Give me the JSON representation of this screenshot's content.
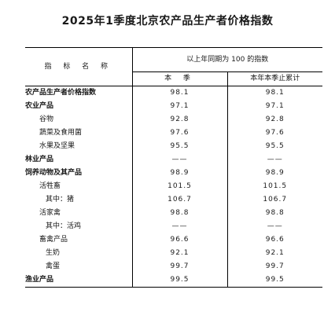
{
  "title": "2025年1季度北京农产品生产者价格指数",
  "header": {
    "name_col": "指 标 名 称",
    "group": "以上年同期为 100 的指数",
    "col_current": "本 季",
    "col_cumulative": "本年本季止累计"
  },
  "rows": [
    {
      "label": "农产品生产者价格指数",
      "current": "98.1",
      "cumulative": "98.1"
    },
    {
      "label": "农业产品",
      "current": "97.1",
      "cumulative": "97.1"
    },
    {
      "label": "谷物",
      "current": "92.8",
      "cumulative": "92.8"
    },
    {
      "label": "蔬菜及食用菌",
      "current": "97.6",
      "cumulative": "97.6"
    },
    {
      "label": "水果及坚果",
      "current": "95.5",
      "cumulative": "95.5"
    },
    {
      "label": "林业产品",
      "current": "——",
      "cumulative": "——"
    },
    {
      "label": "饲养动物及其产品",
      "current": "98.9",
      "cumulative": "98.9"
    },
    {
      "label": "活牲畜",
      "current": "101.5",
      "cumulative": "101.5"
    },
    {
      "label": "其中：猪",
      "current": "106.7",
      "cumulative": "106.7"
    },
    {
      "label": "活家禽",
      "current": "98.8",
      "cumulative": "98.8"
    },
    {
      "label": "其中：活鸡",
      "current": "——",
      "cumulative": "——"
    },
    {
      "label": "畜禽产品",
      "current": "96.6",
      "cumulative": "96.6"
    },
    {
      "label": "生奶",
      "current": "92.1",
      "cumulative": "92.1"
    },
    {
      "label": "禽蛋",
      "current": "99.7",
      "cumulative": "99.7"
    },
    {
      "label": "渔业产品",
      "current": "99.5",
      "cumulative": "99.5"
    }
  ]
}
